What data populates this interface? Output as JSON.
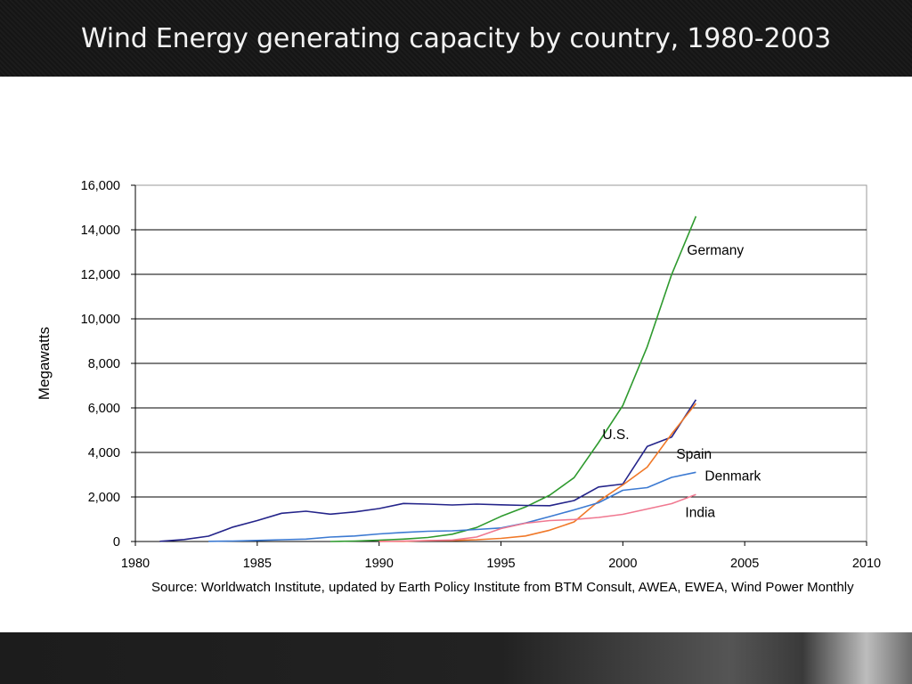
{
  "slide": {
    "title": "Wind Energy generating capacity by country, 1980-2003"
  },
  "source_note": "Source: Worldwatch Institute, updated by Earth Policy Institute from BTM Consult, AWEA, EWEA, Wind Power Monthly",
  "chart_data": {
    "type": "line",
    "title": "",
    "xlabel": "",
    "ylabel": "Megawatts",
    "xlim": [
      1980,
      2010
    ],
    "ylim": [
      0,
      16000
    ],
    "x_ticks": [
      "1980",
      "1985",
      "1990",
      "1995",
      "2000",
      "2005",
      "2010"
    ],
    "y_ticks": [
      "0",
      "2,000",
      "4,000",
      "6,000",
      "8,000",
      "10,000",
      "12,000",
      "14,000",
      "16,000"
    ],
    "grid": "horizontal",
    "legend": "inline labels",
    "series": [
      {
        "name": "Germany",
        "color": "#2e9a2e",
        "x": [
          1988,
          1989,
          1990,
          1991,
          1992,
          1993,
          1994,
          1995,
          1996,
          1997,
          1998,
          1999,
          2000,
          2001,
          2002,
          2003
        ],
        "y": [
          0,
          20,
          60,
          110,
          180,
          330,
          630,
          1130,
          1550,
          2080,
          2870,
          4440,
          6110,
          8750,
          11990,
          14610
        ]
      },
      {
        "name": "U.S.",
        "color": "#24248a",
        "x": [
          1981,
          1982,
          1983,
          1984,
          1985,
          1986,
          1987,
          1988,
          1989,
          1990,
          1991,
          1992,
          1993,
          1994,
          1995,
          1996,
          1997,
          1998,
          1999,
          2000,
          2001,
          2002,
          2003
        ],
        "y": [
          10,
          90,
          240,
          650,
          940,
          1270,
          1360,
          1230,
          1330,
          1480,
          1710,
          1680,
          1640,
          1680,
          1650,
          1620,
          1610,
          1840,
          2450,
          2580,
          4270,
          4690,
          6370
        ]
      },
      {
        "name": "Spain",
        "color": "#f07828",
        "x": [
          1990,
          1991,
          1992,
          1993,
          1994,
          1995,
          1996,
          1997,
          1998,
          1999,
          2000,
          2001,
          2002,
          2003
        ],
        "y": [
          10,
          10,
          40,
          50,
          80,
          140,
          250,
          510,
          880,
          1810,
          2540,
          3340,
          4830,
          6200
        ]
      },
      {
        "name": "Denmark",
        "color": "#3c7ad2",
        "x": [
          1983,
          1984,
          1985,
          1986,
          1987,
          1988,
          1989,
          1990,
          1991,
          1992,
          1993,
          1994,
          1995,
          1996,
          1997,
          1998,
          1999,
          2000,
          2001,
          2002,
          2003
        ],
        "y": [
          10,
          20,
          50,
          80,
          110,
          200,
          250,
          340,
          410,
          460,
          480,
          540,
          610,
          830,
          1120,
          1420,
          1740,
          2300,
          2420,
          2880,
          3110
        ]
      },
      {
        "name": "India",
        "color": "#f07890",
        "x": [
          1990,
          1991,
          1992,
          1993,
          1994,
          1995,
          1996,
          1997,
          1998,
          1999,
          2000,
          2001,
          2002,
          2003
        ],
        "y": [
          0,
          20,
          40,
          70,
          200,
          580,
          820,
          940,
          990,
          1080,
          1220,
          1460,
          1700,
          2110
        ]
      }
    ]
  }
}
